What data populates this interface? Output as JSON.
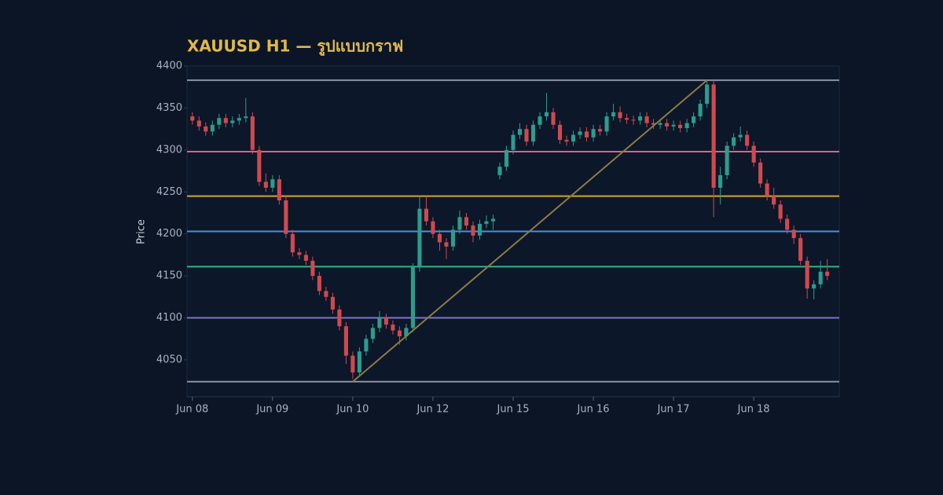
{
  "chart_data": {
    "type": "candlestick",
    "title": "XAUUSD H1 — รูปแบบกราฟ",
    "y_label": "Price",
    "up_color": "#2a9d8f",
    "down_color": "#d0494f",
    "ylim": [
      4006,
      4400
    ],
    "yticks": [
      4050,
      4100,
      4150,
      4200,
      4250,
      4300,
      4350,
      4400
    ],
    "xlim": [
      -0.8,
      96.8
    ],
    "xticks": [
      {
        "value": 0,
        "label": "Jun 08"
      },
      {
        "value": 12,
        "label": "Jun 09"
      },
      {
        "value": 24,
        "label": "Jun 10"
      },
      {
        "value": 36,
        "label": "Jun 12"
      },
      {
        "value": 48,
        "label": "Jun 15"
      },
      {
        "value": 60,
        "label": "Jun 16"
      },
      {
        "value": 72,
        "label": "Jun 17"
      },
      {
        "value": 84,
        "label": "Jun 18"
      }
    ],
    "open": [
      4340,
      4335,
      4328,
      4322,
      4330,
      4338,
      4332,
      4335,
      4338,
      4340,
      4300,
      4262,
      4255,
      4265,
      4240,
      4200,
      4178,
      4175,
      4168,
      4150,
      4132,
      4125,
      4110,
      4090,
      4055,
      4035,
      4060,
      4075,
      4088,
      4100,
      4092,
      4085,
      4078,
      4088,
      4160,
      4230,
      4215,
      4200,
      4190,
      4185,
      4205,
      4220,
      4210,
      4198,
      4212,
      4215,
      4270,
      4280,
      4300,
      4318,
      4325,
      4310,
      4330,
      4340,
      4345,
      4330,
      4312,
      4310,
      4318,
      4322,
      4315,
      4325,
      4322,
      4340,
      4345,
      4338,
      4336,
      4335,
      4340,
      4332,
      4330,
      4332,
      4328,
      4330,
      4326,
      4332,
      4340,
      4355,
      4378,
      4255,
      4270,
      4305,
      4315,
      4318,
      4305,
      4285,
      4260,
      4245,
      4235,
      4218,
      4205,
      4195,
      4168,
      4135,
      4140,
      4155
    ],
    "high": [
      4345,
      4340,
      4333,
      4335,
      4343,
      4343,
      4340,
      4343,
      4362,
      4345,
      4305,
      4272,
      4270,
      4270,
      4245,
      4205,
      4183,
      4180,
      4173,
      4155,
      4137,
      4130,
      4115,
      4095,
      4060,
      4065,
      4080,
      4093,
      4108,
      4105,
      4097,
      4090,
      4093,
      4165,
      4245,
      4245,
      4220,
      4205,
      4195,
      4210,
      4228,
      4225,
      4215,
      4217,
      4222,
      4223,
      4285,
      4305,
      4323,
      4332,
      4330,
      4335,
      4345,
      4368,
      4350,
      4335,
      4317,
      4323,
      4327,
      4327,
      4330,
      4330,
      4345,
      4355,
      4352,
      4343,
      4341,
      4345,
      4345,
      4337,
      4337,
      4337,
      4335,
      4335,
      4337,
      4345,
      4360,
      4383,
      4383,
      4280,
      4310,
      4320,
      4328,
      4323,
      4310,
      4290,
      4265,
      4255,
      4240,
      4223,
      4210,
      4200,
      4173,
      4145,
      4168,
      4170
    ],
    "low": [
      4330,
      4323,
      4317,
      4317,
      4325,
      4327,
      4327,
      4330,
      4333,
      4295,
      4257,
      4250,
      4250,
      4235,
      4195,
      4173,
      4170,
      4163,
      4145,
      4127,
      4120,
      4105,
      4085,
      4045,
      4027,
      4030,
      4055,
      4070,
      4083,
      4087,
      4080,
      4068,
      4073,
      4083,
      4155,
      4210,
      4195,
      4180,
      4170,
      4180,
      4200,
      4205,
      4190,
      4193,
      4207,
      4205,
      4265,
      4275,
      4295,
      4313,
      4305,
      4305,
      4325,
      4335,
      4325,
      4307,
      4305,
      4305,
      4313,
      4310,
      4310,
      4317,
      4317,
      4335,
      4333,
      4331,
      4330,
      4330,
      4327,
      4325,
      4325,
      4323,
      4323,
      4321,
      4321,
      4327,
      4335,
      4350,
      4220,
      4235,
      4265,
      4300,
      4310,
      4300,
      4280,
      4255,
      4240,
      4230,
      4213,
      4200,
      4188,
      4163,
      4123,
      4122,
      4135,
      4145
    ],
    "close": [
      4335,
      4328,
      4322,
      4330,
      4338,
      4332,
      4335,
      4338,
      4340,
      4300,
      4262,
      4255,
      4265,
      4240,
      4200,
      4178,
      4175,
      4168,
      4150,
      4132,
      4125,
      4110,
      4090,
      4055,
      4035,
      4060,
      4075,
      4088,
      4100,
      4092,
      4085,
      4078,
      4088,
      4160,
      4230,
      4215,
      4200,
      4190,
      4185,
      4205,
      4220,
      4210,
      4198,
      4212,
      4215,
      4218,
      4280,
      4300,
      4318,
      4325,
      4310,
      4330,
      4340,
      4345,
      4330,
      4312,
      4310,
      4318,
      4322,
      4315,
      4325,
      4322,
      4340,
      4345,
      4338,
      4336,
      4335,
      4340,
      4332,
      4330,
      4332,
      4328,
      4330,
      4326,
      4332,
      4340,
      4355,
      4378,
      4255,
      4270,
      4305,
      4315,
      4318,
      4305,
      4285,
      4260,
      4245,
      4235,
      4218,
      4205,
      4195,
      4168,
      4135,
      4140,
      4155,
      4150
    ],
    "levels": [
      {
        "value": 4383,
        "color": "#8a93a0"
      },
      {
        "value": 4298,
        "color": "#d4668f"
      },
      {
        "value": 4245,
        "color": "#d4a62a"
      },
      {
        "value": 4203,
        "color": "#4a8fe0"
      },
      {
        "value": 4161,
        "color": "#2fb589"
      },
      {
        "value": 4100,
        "color": "#7f6fd6"
      },
      {
        "value": 4024,
        "color": "#8a93a0"
      }
    ],
    "trendline": {
      "x": [
        24,
        77
      ],
      "y": [
        4024,
        4383
      ],
      "color": "#8c7a45"
    }
  }
}
